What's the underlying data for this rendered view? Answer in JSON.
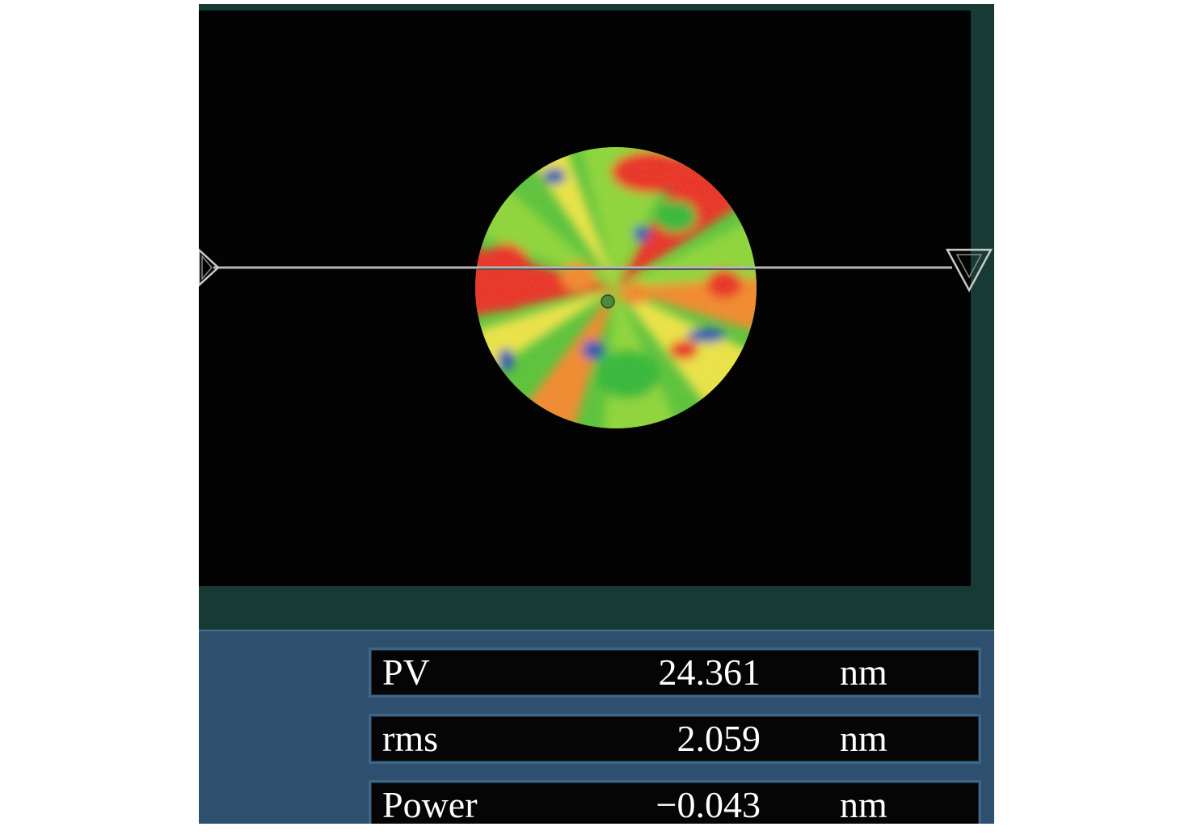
{
  "map": {
    "colors": {
      "background": "#030303",
      "green": "#37b83e",
      "light_green": "#8ed43c",
      "yellow": "#e9e24a",
      "orange": "#f08a32",
      "red": "#e8342a",
      "blue": "#2c57b8",
      "profile_line": "#b7b7b7"
    }
  },
  "results": [
    {
      "label": "PV",
      "value": "24.361",
      "unit": "nm"
    },
    {
      "label": "rms",
      "value": "2.059",
      "unit": "nm"
    },
    {
      "label": "Power",
      "value": "−0.043",
      "unit": "nm"
    }
  ],
  "icons": {
    "left_marker": "triangle-marker-left-icon",
    "right_marker": "triangle-marker-right-icon"
  }
}
